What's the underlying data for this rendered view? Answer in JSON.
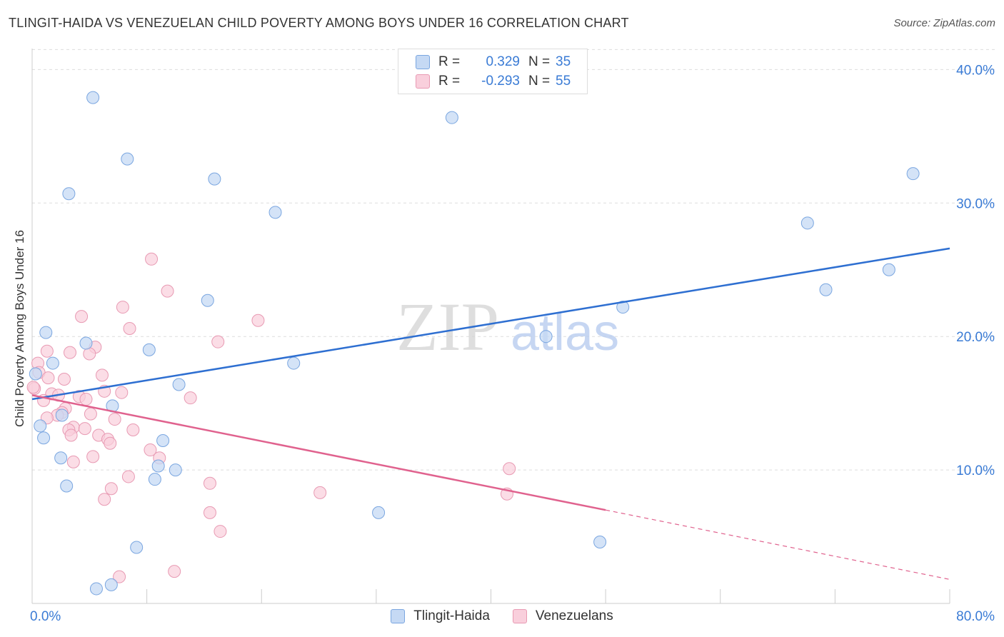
{
  "header": {
    "title": "TLINGIT-HAIDA VS VENEZUELAN CHILD POVERTY AMONG BOYS UNDER 16 CORRELATION CHART",
    "source": "Source: ZipAtlas.com"
  },
  "legend_top": {
    "rows": [
      {
        "r_label": "R =",
        "r_value": "0.329",
        "n_label": "N =",
        "n_value": "35"
      },
      {
        "r_label": "R =",
        "r_value": "-0.293",
        "n_label": "N =",
        "n_value": "55"
      }
    ]
  },
  "legend_bottom": {
    "items": [
      {
        "label": "Tlingit-Haida"
      },
      {
        "label": "Venezuelans"
      }
    ]
  },
  "colors": {
    "blue_fill": "#c5d9f4",
    "blue_stroke": "#7aa6e0",
    "blue_line": "#2e6fd1",
    "pink_fill": "#f9cfdc",
    "pink_stroke": "#e89ab3",
    "pink_line": "#e0628e",
    "axis_text": "#3a7bd5",
    "grid": "#dddddd"
  },
  "watermark": {
    "zip": "ZIP",
    "atlas": "atlas"
  },
  "chart_data": {
    "type": "scatter",
    "title": "TLINGIT-HAIDA VS VENEZUELAN CHILD POVERTY AMONG BOYS UNDER 16 CORRELATION CHART",
    "xlabel": "",
    "ylabel": "Child Poverty Among Boys Under 16",
    "xlim": [
      0,
      80
    ],
    "ylim": [
      0,
      42
    ],
    "x_tick_labels": [
      "0.0%",
      "80.0%"
    ],
    "y_ticks": [
      10,
      20,
      30,
      40
    ],
    "y_tick_labels": [
      "10.0%",
      "20.0%",
      "30.0%",
      "40.0%"
    ],
    "grid": true,
    "legend_position": "bottom",
    "series": [
      {
        "name": "Tlingit-Haida",
        "color": "#7aa6e0",
        "points": [
          [
            5.3,
            37.9
          ],
          [
            36.6,
            36.4
          ],
          [
            8.3,
            33.3
          ],
          [
            15.9,
            31.8
          ],
          [
            3.2,
            30.7
          ],
          [
            21.2,
            29.3
          ],
          [
            76.8,
            32.2
          ],
          [
            67.6,
            28.5
          ],
          [
            74.7,
            25.0
          ],
          [
            69.2,
            23.5
          ],
          [
            15.3,
            22.7
          ],
          [
            51.5,
            22.2
          ],
          [
            1.2,
            20.3
          ],
          [
            4.7,
            19.5
          ],
          [
            10.2,
            19.0
          ],
          [
            44.8,
            20.0
          ],
          [
            1.8,
            18.0
          ],
          [
            22.8,
            18.0
          ],
          [
            0.3,
            17.2
          ],
          [
            12.8,
            16.4
          ],
          [
            7.0,
            14.8
          ],
          [
            2.6,
            14.1
          ],
          [
            0.7,
            13.3
          ],
          [
            1.0,
            12.4
          ],
          [
            11.4,
            12.2
          ],
          [
            2.5,
            10.9
          ],
          [
            11.0,
            10.3
          ],
          [
            12.5,
            10.0
          ],
          [
            10.7,
            9.3
          ],
          [
            3.0,
            8.8
          ],
          [
            30.2,
            6.8
          ],
          [
            49.5,
            4.6
          ],
          [
            9.1,
            4.2
          ],
          [
            6.9,
            1.4
          ],
          [
            5.6,
            1.1
          ]
        ],
        "trend": {
          "x": [
            0,
            80
          ],
          "y": [
            15.3,
            26.6
          ]
        }
      },
      {
        "name": "Venezuelans",
        "color": "#e89ab3",
        "points": [
          [
            10.4,
            25.8
          ],
          [
            11.8,
            23.4
          ],
          [
            7.9,
            22.2
          ],
          [
            19.7,
            21.2
          ],
          [
            4.3,
            21.5
          ],
          [
            8.5,
            20.6
          ],
          [
            16.2,
            19.6
          ],
          [
            5.5,
            19.2
          ],
          [
            3.3,
            18.8
          ],
          [
            1.3,
            18.9
          ],
          [
            5.0,
            18.7
          ],
          [
            0.5,
            18.0
          ],
          [
            0.6,
            17.3
          ],
          [
            6.1,
            17.1
          ],
          [
            1.4,
            16.9
          ],
          [
            2.8,
            16.8
          ],
          [
            0.2,
            16.1
          ],
          [
            6.3,
            15.9
          ],
          [
            7.8,
            15.8
          ],
          [
            1.7,
            15.7
          ],
          [
            2.3,
            15.6
          ],
          [
            4.1,
            15.5
          ],
          [
            4.7,
            15.3
          ],
          [
            13.8,
            15.4
          ],
          [
            1.0,
            15.2
          ],
          [
            2.9,
            14.6
          ],
          [
            2.6,
            14.3
          ],
          [
            5.1,
            14.2
          ],
          [
            2.2,
            14.1
          ],
          [
            1.3,
            13.9
          ],
          [
            7.2,
            13.8
          ],
          [
            3.6,
            13.2
          ],
          [
            4.6,
            13.1
          ],
          [
            3.2,
            13.0
          ],
          [
            8.8,
            13.0
          ],
          [
            5.8,
            12.6
          ],
          [
            3.4,
            12.6
          ],
          [
            6.6,
            12.3
          ],
          [
            6.8,
            12.0
          ],
          [
            10.3,
            11.5
          ],
          [
            5.3,
            11.0
          ],
          [
            11.1,
            10.9
          ],
          [
            3.6,
            10.6
          ],
          [
            41.6,
            10.1
          ],
          [
            8.4,
            9.5
          ],
          [
            15.5,
            9.0
          ],
          [
            6.9,
            8.6
          ],
          [
            25.1,
            8.3
          ],
          [
            41.4,
            8.2
          ],
          [
            6.3,
            7.8
          ],
          [
            15.5,
            6.8
          ],
          [
            16.4,
            5.4
          ],
          [
            12.4,
            2.4
          ],
          [
            7.6,
            2.0
          ],
          [
            0.1,
            16.2
          ]
        ],
        "trend": {
          "x": [
            0,
            50
          ],
          "y": [
            15.6,
            7.0
          ]
        },
        "trend_dashed": {
          "x": [
            50,
            80
          ],
          "y": [
            7.0,
            1.8
          ]
        }
      }
    ]
  }
}
